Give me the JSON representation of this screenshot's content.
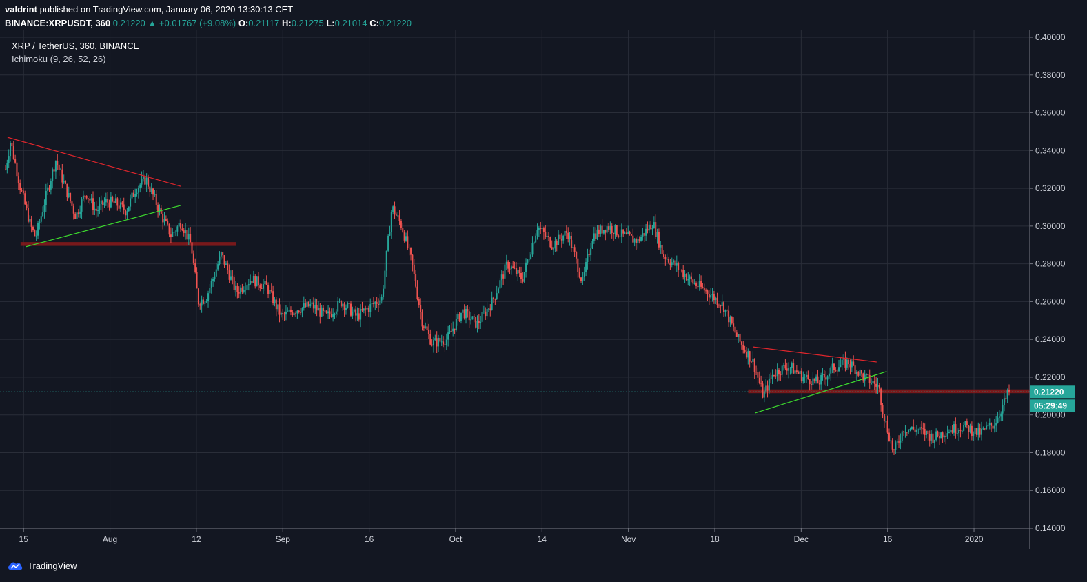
{
  "header": {
    "author": "valdrint",
    "publish_text": "published on TradingView.com, January 06, 2020 13:30:13 CET",
    "symbol_line": "BINANCE:XRPUSDT, 360",
    "last_price": "0.21220",
    "change_arrow": "▲",
    "change": "+0.01767 (+9.08%)",
    "o_label": "O:",
    "o_value": "0.21117",
    "h_label": "H:",
    "h_value": "0.21275",
    "l_label": "L:",
    "l_value": "0.21014",
    "c_label": "C:",
    "c_value": "0.21220"
  },
  "legend": {
    "title": "XRP / TetherUS, 360, BINANCE",
    "indicator": "Ichimoku (9, 26, 52, 26)"
  },
  "footer": {
    "brand": "TradingView"
  },
  "colors": {
    "background": "#131722",
    "grid": "#2a2e39",
    "up": "#26a69a",
    "down": "#ef5350",
    "resistance": "#e0262c",
    "support": "#3ddc2e",
    "zone": "#8b1a1a"
  },
  "chart_data": {
    "type": "candlestick",
    "title": "XRP / TetherUS, 360, BINANCE",
    "y_axis": {
      "ticks": [
        "0.40000",
        "0.38000",
        "0.36000",
        "0.34000",
        "0.32000",
        "0.30000",
        "0.28000",
        "0.26000",
        "0.24000",
        "0.22000",
        "0.20000",
        "0.18000",
        "0.16000",
        "0.14000"
      ],
      "range": [
        0.14,
        0.4
      ]
    },
    "x_axis": {
      "ticks": [
        "15",
        "Aug",
        "12",
        "Sep",
        "16",
        "Oct",
        "14",
        "Nov",
        "18",
        "Dec",
        "16",
        "2020"
      ]
    },
    "current_price_label": "0.21220",
    "countdown_label": "05:29:49",
    "price_path": [
      {
        "t": 0.0,
        "p": 0.33
      },
      {
        "t": 0.005,
        "p": 0.345
      },
      {
        "t": 0.015,
        "p": 0.32
      },
      {
        "t": 0.025,
        "p": 0.3
      },
      {
        "t": 0.03,
        "p": 0.294
      },
      {
        "t": 0.04,
        "p": 0.315
      },
      {
        "t": 0.05,
        "p": 0.335
      },
      {
        "t": 0.06,
        "p": 0.32
      },
      {
        "t": 0.07,
        "p": 0.305
      },
      {
        "t": 0.08,
        "p": 0.318
      },
      {
        "t": 0.09,
        "p": 0.308
      },
      {
        "t": 0.1,
        "p": 0.313
      },
      {
        "t": 0.11,
        "p": 0.312
      },
      {
        "t": 0.12,
        "p": 0.308
      },
      {
        "t": 0.13,
        "p": 0.32
      },
      {
        "t": 0.14,
        "p": 0.325
      },
      {
        "t": 0.155,
        "p": 0.306
      },
      {
        "t": 0.165,
        "p": 0.295
      },
      {
        "t": 0.175,
        "p": 0.302
      },
      {
        "t": 0.185,
        "p": 0.29
      },
      {
        "t": 0.192,
        "p": 0.26
      },
      {
        "t": 0.2,
        "p": 0.262
      },
      {
        "t": 0.215,
        "p": 0.285
      },
      {
        "t": 0.23,
        "p": 0.265
      },
      {
        "t": 0.245,
        "p": 0.272
      },
      {
        "t": 0.26,
        "p": 0.268
      },
      {
        "t": 0.275,
        "p": 0.252
      },
      {
        "t": 0.29,
        "p": 0.256
      },
      {
        "t": 0.305,
        "p": 0.258
      },
      {
        "t": 0.32,
        "p": 0.252
      },
      {
        "t": 0.335,
        "p": 0.26
      },
      {
        "t": 0.35,
        "p": 0.252
      },
      {
        "t": 0.365,
        "p": 0.258
      },
      {
        "t": 0.375,
        "p": 0.262
      },
      {
        "t": 0.385,
        "p": 0.31
      },
      {
        "t": 0.395,
        "p": 0.3
      },
      {
        "t": 0.405,
        "p": 0.28
      },
      {
        "t": 0.415,
        "p": 0.25
      },
      {
        "t": 0.425,
        "p": 0.238
      },
      {
        "t": 0.44,
        "p": 0.24
      },
      {
        "t": 0.455,
        "p": 0.255
      },
      {
        "t": 0.47,
        "p": 0.248
      },
      {
        "t": 0.485,
        "p": 0.26
      },
      {
        "t": 0.5,
        "p": 0.28
      },
      {
        "t": 0.515,
        "p": 0.272
      },
      {
        "t": 0.53,
        "p": 0.3
      },
      {
        "t": 0.545,
        "p": 0.29
      },
      {
        "t": 0.56,
        "p": 0.297
      },
      {
        "t": 0.575,
        "p": 0.27
      },
      {
        "t": 0.585,
        "p": 0.295
      },
      {
        "t": 0.6,
        "p": 0.3
      },
      {
        "t": 0.615,
        "p": 0.295
      },
      {
        "t": 0.63,
        "p": 0.292
      },
      {
        "t": 0.645,
        "p": 0.302
      },
      {
        "t": 0.655,
        "p": 0.285
      },
      {
        "t": 0.67,
        "p": 0.278
      },
      {
        "t": 0.685,
        "p": 0.27
      },
      {
        "t": 0.7,
        "p": 0.265
      },
      {
        "t": 0.715,
        "p": 0.258
      },
      {
        "t": 0.73,
        "p": 0.24
      },
      {
        "t": 0.745,
        "p": 0.228
      },
      {
        "t": 0.755,
        "p": 0.21
      },
      {
        "t": 0.765,
        "p": 0.222
      },
      {
        "t": 0.78,
        "p": 0.226
      },
      {
        "t": 0.795,
        "p": 0.22
      },
      {
        "t": 0.81,
        "p": 0.217
      },
      {
        "t": 0.825,
        "p": 0.225
      },
      {
        "t": 0.84,
        "p": 0.228
      },
      {
        "t": 0.855,
        "p": 0.22
      },
      {
        "t": 0.87,
        "p": 0.215
      },
      {
        "t": 0.875,
        "p": 0.2
      },
      {
        "t": 0.885,
        "p": 0.18
      },
      {
        "t": 0.895,
        "p": 0.193
      },
      {
        "t": 0.91,
        "p": 0.192
      },
      {
        "t": 0.925,
        "p": 0.188
      },
      {
        "t": 0.94,
        "p": 0.192
      },
      {
        "t": 0.955,
        "p": 0.194
      },
      {
        "t": 0.97,
        "p": 0.19
      },
      {
        "t": 0.985,
        "p": 0.195
      },
      {
        "t": 1.0,
        "p": 0.2122
      }
    ],
    "annotations": {
      "resistance_lines": [
        {
          "from": {
            "t": 0.002,
            "p": 0.347
          },
          "to": {
            "t": 0.175,
            "p": 0.321
          }
        },
        {
          "from": {
            "t": 0.745,
            "p": 0.236
          },
          "to": {
            "t": 0.868,
            "p": 0.228
          }
        }
      ],
      "support_lines": [
        {
          "from": {
            "t": 0.02,
            "p": 0.289
          },
          "to": {
            "t": 0.175,
            "p": 0.311
          }
        },
        {
          "from": {
            "t": 0.747,
            "p": 0.201
          },
          "to": {
            "t": 0.878,
            "p": 0.223
          }
        }
      ],
      "zones": [
        {
          "t0": 0.015,
          "t1": 0.23,
          "p0": 0.2895,
          "p1": 0.2915
        },
        {
          "t0": 0.74,
          "t1": 1.02,
          "p0": 0.2115,
          "p1": 0.2135
        }
      ]
    }
  }
}
